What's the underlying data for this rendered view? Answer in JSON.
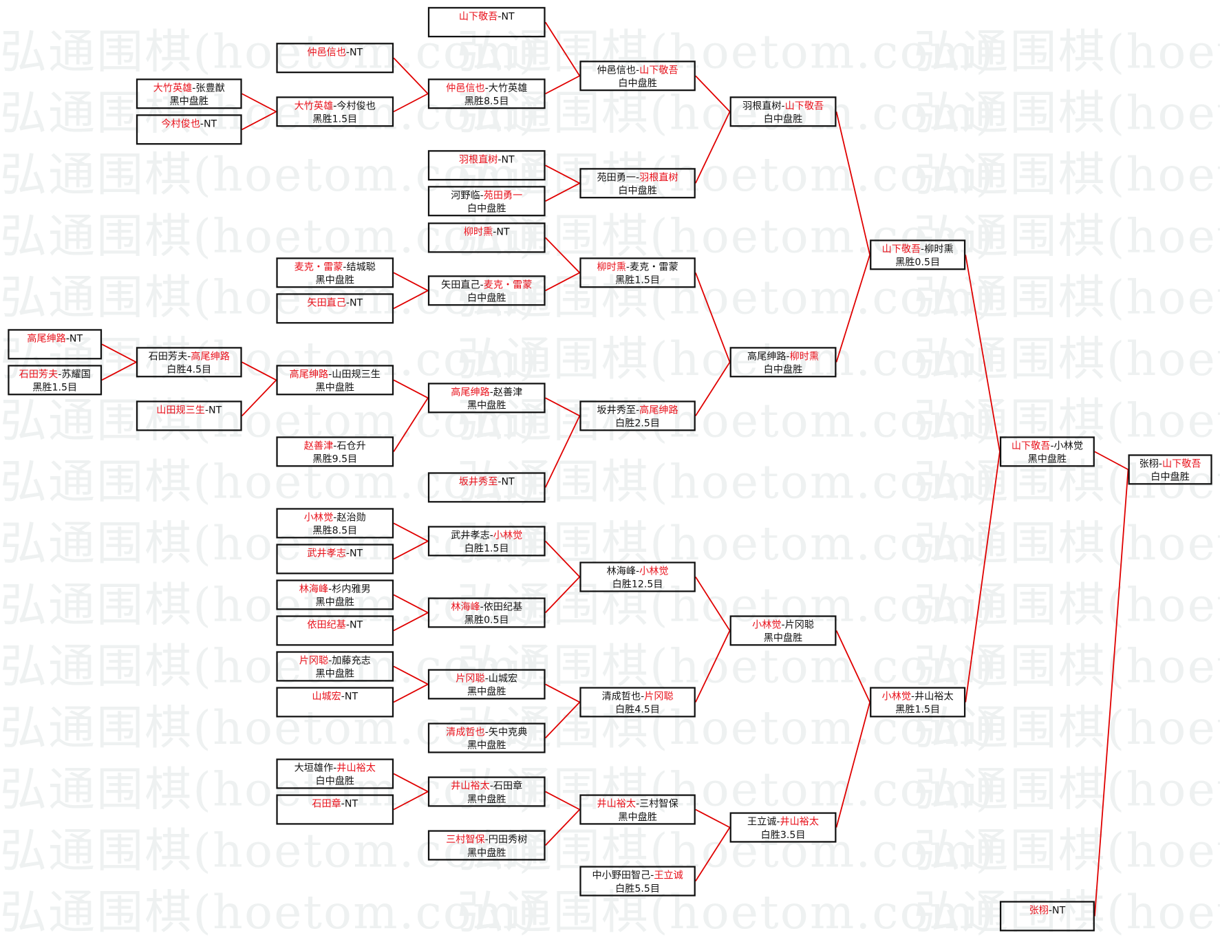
{
  "watermark": "弘通围棋(hoetom.com)",
  "colors": {
    "winner_text": "#e8111b",
    "connector": "#e00000",
    "border": "#111111"
  },
  "boxes": {
    "D1": {
      "line1": [
        {
          "t": "高尾绅路",
          "r": true
        },
        {
          "t": "-NT"
        }
      ],
      "line2": ""
    },
    "D2": {
      "line1": [
        {
          "t": "石田芳夫",
          "r": true
        },
        {
          "t": "-苏耀国"
        }
      ],
      "line2": "黑胜1.5目"
    },
    "C1": {
      "line1": [
        {
          "t": "大竹英雄",
          "r": true
        },
        {
          "t": "-张豊猷"
        }
      ],
      "line2": "黑中盘胜"
    },
    "C2": {
      "line1": [
        {
          "t": "今村俊也",
          "r": true
        },
        {
          "t": "-NT"
        }
      ],
      "line2": ""
    },
    "C3": {
      "line1": [
        {
          "t": "石田芳夫-"
        },
        {
          "t": "高尾绅路",
          "r": true
        }
      ],
      "line2": "白胜4.5目"
    },
    "C4": {
      "line1": [
        {
          "t": "山田规三生",
          "r": true
        },
        {
          "t": "-NT"
        }
      ],
      "line2": ""
    },
    "B1": {
      "line1": [
        {
          "t": "仲邑信也",
          "r": true
        },
        {
          "t": "-NT"
        }
      ],
      "line2": ""
    },
    "B2": {
      "line1": [
        {
          "t": "大竹英雄",
          "r": true
        },
        {
          "t": "-今村俊也"
        }
      ],
      "line2": "黑胜1.5目"
    },
    "B3": {
      "line1": [
        {
          "t": "麦克・雷蒙",
          "r": true
        },
        {
          "t": "-结城聪"
        }
      ],
      "line2": "黑中盘胜"
    },
    "B4": {
      "line1": [
        {
          "t": "矢田直己",
          "r": true
        },
        {
          "t": "-NT"
        }
      ],
      "line2": ""
    },
    "B5": {
      "line1": [
        {
          "t": "高尾绅路",
          "r": true
        },
        {
          "t": "-山田规三生"
        }
      ],
      "line2": "黑中盘胜"
    },
    "B6": {
      "line1": [
        {
          "t": "赵善津",
          "r": true
        },
        {
          "t": "-石仓升"
        }
      ],
      "line2": "黑胜9.5目"
    },
    "B7": {
      "line1": [
        {
          "t": "小林觉",
          "r": true
        },
        {
          "t": "-赵治勋"
        }
      ],
      "line2": "黑胜8.5目"
    },
    "B8": {
      "line1": [
        {
          "t": "武井孝志",
          "r": true
        },
        {
          "t": "-NT"
        }
      ],
      "line2": ""
    },
    "B9": {
      "line1": [
        {
          "t": "林海峰",
          "r": true
        },
        {
          "t": "-杉内雅男"
        }
      ],
      "line2": "黑中盘胜"
    },
    "B10": {
      "line1": [
        {
          "t": "依田纪基",
          "r": true
        },
        {
          "t": "-NT"
        }
      ],
      "line2": ""
    },
    "B11": {
      "line1": [
        {
          "t": "片冈聪",
          "r": true
        },
        {
          "t": "-加藤充志"
        }
      ],
      "line2": "黑中盘胜"
    },
    "B12": {
      "line1": [
        {
          "t": "山城宏",
          "r": true
        },
        {
          "t": "-NT"
        }
      ],
      "line2": ""
    },
    "B13": {
      "line1": [
        {
          "t": "大垣雄作-"
        },
        {
          "t": "井山裕太",
          "r": true
        }
      ],
      "line2": "白中盘胜"
    },
    "B14": {
      "line1": [
        {
          "t": "石田章",
          "r": true
        },
        {
          "t": "-NT"
        }
      ],
      "line2": ""
    },
    "A1": {
      "line1": [
        {
          "t": "山下敬吾",
          "r": true
        },
        {
          "t": "-NT"
        }
      ],
      "line2": ""
    },
    "A2": {
      "line1": [
        {
          "t": "仲邑信也",
          "r": true
        },
        {
          "t": "-大竹英雄"
        }
      ],
      "line2": "黑胜8.5目"
    },
    "A3": {
      "line1": [
        {
          "t": "羽根直树",
          "r": true
        },
        {
          "t": "-NT"
        }
      ],
      "line2": ""
    },
    "A4": {
      "line1": [
        {
          "t": "河野临-"
        },
        {
          "t": "苑田勇一",
          "r": true
        }
      ],
      "line2": "白中盘胜"
    },
    "A5": {
      "line1": [
        {
          "t": "柳时熏",
          "r": true
        },
        {
          "t": "-NT"
        }
      ],
      "line2": ""
    },
    "A6": {
      "line1": [
        {
          "t": "矢田直己-"
        },
        {
          "t": "麦克・雷蒙",
          "r": true
        }
      ],
      "line2": "白中盘胜"
    },
    "A7": {
      "line1": [
        {
          "t": "高尾绅路",
          "r": true
        },
        {
          "t": "-赵善津"
        }
      ],
      "line2": "黑中盘胜"
    },
    "A8": {
      "line1": [
        {
          "t": "坂井秀至",
          "r": true
        },
        {
          "t": "-NT"
        }
      ],
      "line2": ""
    },
    "A9": {
      "line1": [
        {
          "t": "武井孝志-"
        },
        {
          "t": "小林觉",
          "r": true
        }
      ],
      "line2": "白胜1.5目"
    },
    "A10": {
      "line1": [
        {
          "t": "林海峰",
          "r": true
        },
        {
          "t": "-依田纪基"
        }
      ],
      "line2": "黑胜0.5目"
    },
    "A11": {
      "line1": [
        {
          "t": "片冈聪",
          "r": true
        },
        {
          "t": "-山城宏"
        }
      ],
      "line2": "黑中盘胜"
    },
    "A12": {
      "line1": [
        {
          "t": "清成哲也",
          "r": true
        },
        {
          "t": "-矢中克典"
        }
      ],
      "line2": "黑中盘胜"
    },
    "A13": {
      "line1": [
        {
          "t": "井山裕太",
          "r": true
        },
        {
          "t": "-石田章"
        }
      ],
      "line2": "黑中盘胜"
    },
    "A14": {
      "line1": [
        {
          "t": "三村智保",
          "r": true
        },
        {
          "t": "-円田秀树"
        }
      ],
      "line2": "黑中盘胜"
    },
    "E1": {
      "line1": [
        {
          "t": "仲邑信也-"
        },
        {
          "t": "山下敬吾",
          "r": true
        }
      ],
      "line2": "白中盘胜"
    },
    "E2": {
      "line1": [
        {
          "t": "苑田勇一-"
        },
        {
          "t": "羽根直树",
          "r": true
        }
      ],
      "line2": "白中盘胜"
    },
    "E3": {
      "line1": [
        {
          "t": "柳时熏",
          "r": true
        },
        {
          "t": "-麦克・雷蒙"
        }
      ],
      "line2": "黑胜1.5目"
    },
    "E4": {
      "line1": [
        {
          "t": "坂井秀至-"
        },
        {
          "t": "高尾绅路",
          "r": true
        }
      ],
      "line2": "白胜2.5目"
    },
    "E5": {
      "line1": [
        {
          "t": "林海峰-"
        },
        {
          "t": "小林觉",
          "r": true
        }
      ],
      "line2": "白胜12.5目"
    },
    "E6": {
      "line1": [
        {
          "t": "清成哲也-"
        },
        {
          "t": "片冈聪",
          "r": true
        }
      ],
      "line2": "白胜4.5目"
    },
    "E7": {
      "line1": [
        {
          "t": "井山裕太",
          "r": true
        },
        {
          "t": "-三村智保"
        }
      ],
      "line2": "黑中盘胜"
    },
    "E8": {
      "line1": [
        {
          "t": "中小野田智己-"
        },
        {
          "t": "王立诚",
          "r": true
        }
      ],
      "line2": "白胜5.5目"
    },
    "F1": {
      "line1": [
        {
          "t": "羽根直树-"
        },
        {
          "t": "山下敬吾",
          "r": true
        }
      ],
      "line2": "白中盘胜"
    },
    "F2": {
      "line1": [
        {
          "t": "高尾绅路-"
        },
        {
          "t": "柳时熏",
          "r": true
        }
      ],
      "line2": "白中盘胜"
    },
    "F3": {
      "line1": [
        {
          "t": "小林觉",
          "r": true
        },
        {
          "t": "-片冈聪"
        }
      ],
      "line2": "黑中盘胜"
    },
    "F4": {
      "line1": [
        {
          "t": "王立诚-"
        },
        {
          "t": "井山裕太",
          "r": true
        }
      ],
      "line2": "白胜3.5目"
    },
    "G1": {
      "line1": [
        {
          "t": "山下敬吾",
          "r": true
        },
        {
          "t": "-柳时熏"
        }
      ],
      "line2": "黑胜0.5目"
    },
    "G2": {
      "line1": [
        {
          "t": "小林觉",
          "r": true
        },
        {
          "t": "-井山裕太"
        }
      ],
      "line2": "黑胜1.5目"
    },
    "H1": {
      "line1": [
        {
          "t": "山下敬吾",
          "r": true
        },
        {
          "t": "-小林觉"
        }
      ],
      "line2": "黑中盘胜"
    },
    "H2": {
      "line1": [
        {
          "t": "张栩",
          "r": true
        },
        {
          "t": "-NT"
        }
      ],
      "line2": ""
    },
    "I1": {
      "line1": [
        {
          "t": "张栩-"
        },
        {
          "t": "山下敬吾",
          "r": true
        }
      ],
      "line2": "白中盘胜"
    }
  }
}
